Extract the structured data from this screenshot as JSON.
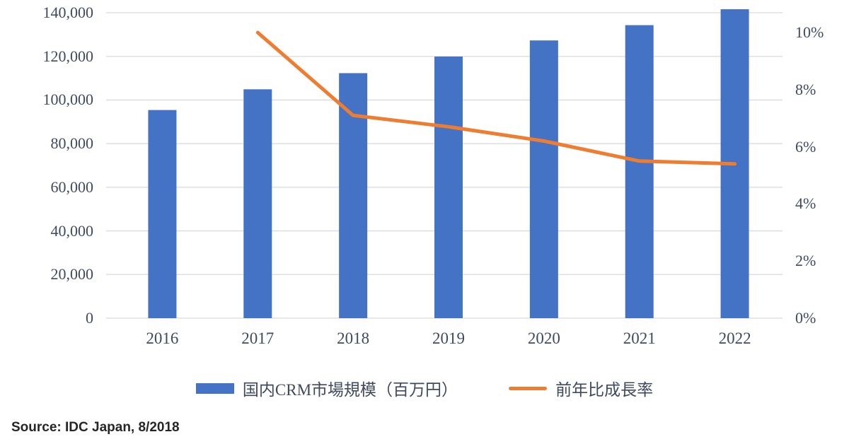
{
  "chart_data": {
    "type": "bar",
    "subtype": "combo-bar-line",
    "title": "",
    "categories": [
      "2016",
      "2017",
      "2018",
      "2019",
      "2020",
      "2021",
      "2022"
    ],
    "series": [
      {
        "name": "国内CRM市場規模（百万円）",
        "type": "bar",
        "axis": "left",
        "color": "#4472C4",
        "values": [
          95400,
          104900,
          112300,
          119900,
          127300,
          134300,
          141600
        ]
      },
      {
        "name": "前年比成長率",
        "type": "line",
        "axis": "right",
        "color": "#ED7D31",
        "values": [
          null,
          10.0,
          7.1,
          6.7,
          6.2,
          5.5,
          5.4
        ]
      }
    ],
    "left_axis": {
      "min": 0,
      "max": 140000,
      "step": 20000,
      "tick_labels": [
        "0",
        "20,000",
        "40,000",
        "60,000",
        "80,000",
        "100,000",
        "120,000",
        "140,000"
      ]
    },
    "right_axis": {
      "min": 0,
      "max": 10,
      "step": 2,
      "unit": "%",
      "tick_labels": [
        "0%",
        "2%",
        "4%",
        "6%",
        "8%",
        "10%"
      ]
    },
    "grid": true,
    "legend_position": "bottom"
  },
  "colors": {
    "bar": "#4472C4",
    "line": "#ED7D31",
    "grid": "#D9D9D9",
    "axis_text": "#3f4a5f"
  },
  "source": "Source: IDC Japan, 8/2018"
}
